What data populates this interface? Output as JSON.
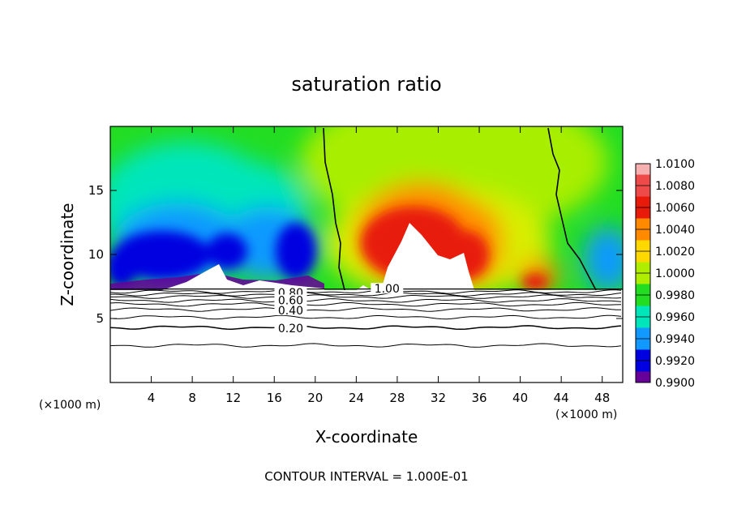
{
  "chart_data": {
    "type": "heatmap",
    "title": "saturation ratio",
    "xlabel": "X-coordinate",
    "ylabel": "Z-coordinate",
    "x_unit_left": "(×1000 m)",
    "x_unit_right": "(×1000 m)",
    "xlim": [
      0,
      50
    ],
    "ylim": [
      0,
      20
    ],
    "x_ticks": [
      4,
      8,
      12,
      16,
      20,
      24,
      28,
      32,
      36,
      40,
      44,
      48
    ],
    "y_ticks": [
      5,
      10,
      15
    ],
    "footer": "CONTOUR INTERVAL = 1.000E-01",
    "colorbar": {
      "levels": [
        "1.0100",
        "1.0080",
        "1.0060",
        "1.0040",
        "1.0020",
        "1.0000",
        "0.9980",
        "0.9960",
        "0.9940",
        "0.9920",
        "0.9900"
      ],
      "colors": [
        "#f7b0b0",
        "#ef4a4a",
        "#e81a0a",
        "#ff8a00",
        "#ffd800",
        "#b0ee00",
        "#22dd22",
        "#00e6bb",
        "#1199ff",
        "#0000e0",
        "#660099"
      ]
    },
    "contour_labels": [
      {
        "text": "0.80",
        "x": 17.6,
        "y": 6.9
      },
      {
        "text": "0.60",
        "x": 17.6,
        "y": 6.3
      },
      {
        "text": "0.40",
        "x": 17.6,
        "y": 5.5
      },
      {
        "text": "0.20",
        "x": 17.6,
        "y": 4.1
      },
      {
        "text": "1.00",
        "x": 27.0,
        "y": 7.2
      }
    ],
    "contour_levels": [
      {
        "value": 0.1,
        "z": 2.9
      },
      {
        "value": 0.2,
        "z": 4.3
      },
      {
        "value": 0.3,
        "z": 5.1
      },
      {
        "value": 0.4,
        "z": 5.7
      },
      {
        "value": 0.5,
        "z": 6.1
      },
      {
        "value": 0.6,
        "z": 6.4
      },
      {
        "value": 0.7,
        "z": 6.7
      },
      {
        "value": 0.8,
        "z": 6.9
      },
      {
        "value": 0.9,
        "z": 7.1
      }
    ],
    "color_field_bottom_z": 7.3
  }
}
